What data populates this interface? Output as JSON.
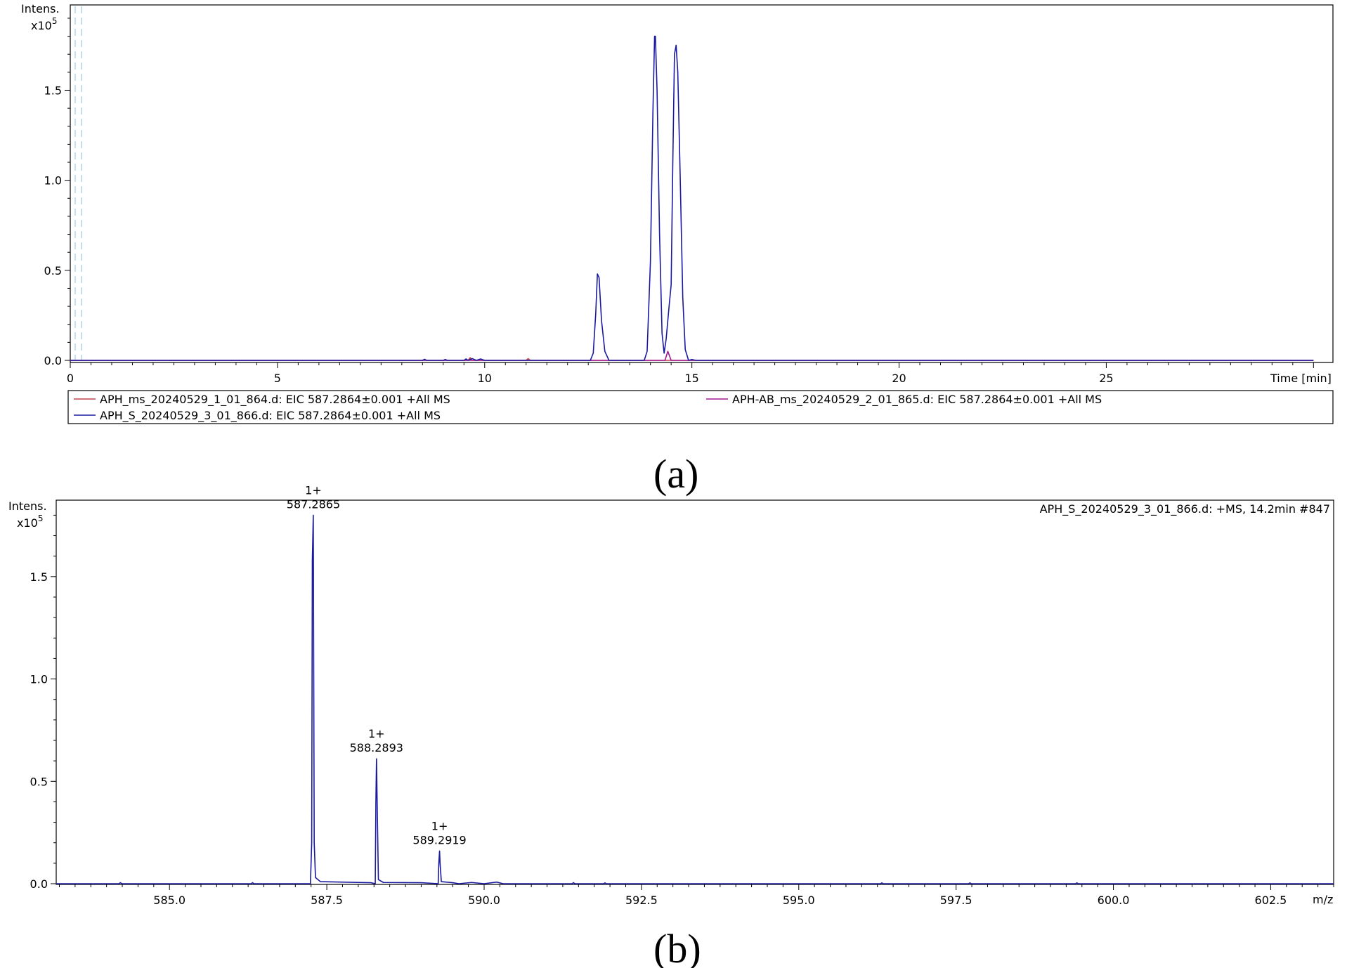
{
  "chart_data": [
    {
      "panel_label": "(a)",
      "type": "line",
      "ylabel": "Intens.",
      "yscale_label": "x10",
      "yscale_exp": "5",
      "xlabel": "Time [min]",
      "xlim": [
        0,
        30.3
      ],
      "ylim": [
        0,
        1.97
      ],
      "x_ticks": [
        0,
        5,
        10,
        15,
        20,
        25
      ],
      "x_tick_labels": [
        "0",
        "5",
        "10",
        "15",
        "20",
        "25"
      ],
      "y_ticks": [
        0.0,
        0.5,
        1.0,
        1.5
      ],
      "y_tick_labels": [
        "0.0",
        "0.5",
        "1.0",
        "1.5"
      ],
      "colors": {
        "series_1": "#c0404a",
        "series_2": "#a01890",
        "series_3": "#1a1aa0"
      },
      "legend": [
        "APH_ms_20240529_1_01_864.d: EIC 587.2864±0.001 +All MS",
        "APH-AB_ms_20240529_2_01_865.d: EIC 587.2864±0.001 +All MS",
        "APH_S_20240529_3_01_866.d: EIC 587.2864±0.001 +All MS"
      ],
      "series": [
        {
          "name": "APH_ms_20240529_1_01_864.d: EIC 587.2864±0.001 +All MS",
          "color": "#c0404a",
          "points": [
            [
              0,
              0
            ],
            [
              9.6,
              0
            ],
            [
              9.65,
              0.015
            ],
            [
              9.7,
              0
            ],
            [
              11.0,
              0
            ],
            [
              11.05,
              0.01
            ],
            [
              11.1,
              0
            ],
            [
              30,
              0
            ]
          ]
        },
        {
          "name": "APH-AB_ms_20240529_2_01_865.d: EIC 587.2864±0.001 +All MS",
          "color": "#a01890",
          "points": [
            [
              0,
              0
            ],
            [
              14.35,
              0
            ],
            [
              14.42,
              0.05
            ],
            [
              14.5,
              0
            ],
            [
              30,
              0
            ]
          ]
        },
        {
          "name": "APH_S_20240529_3_01_866.d: EIC 587.2864±0.001 +All MS",
          "color": "#1a1aa0",
          "points": [
            [
              0,
              0
            ],
            [
              8.5,
              0
            ],
            [
              8.55,
              0.006
            ],
            [
              8.6,
              0
            ],
            [
              9.0,
              0
            ],
            [
              9.05,
              0.005
            ],
            [
              9.1,
              0
            ],
            [
              9.5,
              0
            ],
            [
              9.55,
              0.008
            ],
            [
              9.6,
              0
            ],
            [
              9.7,
              0.01
            ],
            [
              9.8,
              0
            ],
            [
              9.9,
              0.008
            ],
            [
              10.0,
              0
            ],
            [
              12.55,
              0
            ],
            [
              12.62,
              0.04
            ],
            [
              12.68,
              0.26
            ],
            [
              12.72,
              0.48
            ],
            [
              12.76,
              0.46
            ],
            [
              12.82,
              0.22
            ],
            [
              12.9,
              0.05
            ],
            [
              13.0,
              0
            ],
            [
              13.4,
              0
            ],
            [
              13.85,
              0
            ],
            [
              13.92,
              0.05
            ],
            [
              14.0,
              0.55
            ],
            [
              14.06,
              1.38
            ],
            [
              14.1,
              1.8
            ],
            [
              14.12,
              1.8
            ],
            [
              14.16,
              1.5
            ],
            [
              14.22,
              0.7
            ],
            [
              14.28,
              0.15
            ],
            [
              14.33,
              0.04
            ],
            [
              14.38,
              0.12
            ],
            [
              14.45,
              0.3
            ],
            [
              14.5,
              0.42
            ],
            [
              14.54,
              1.1
            ],
            [
              14.58,
              1.7
            ],
            [
              14.62,
              1.75
            ],
            [
              14.66,
              1.6
            ],
            [
              14.72,
              1.0
            ],
            [
              14.78,
              0.35
            ],
            [
              14.84,
              0.06
            ],
            [
              14.92,
              0
            ],
            [
              15.0,
              0.005
            ],
            [
              15.1,
              0
            ],
            [
              30,
              0
            ]
          ]
        }
      ]
    },
    {
      "panel_label": "(b)",
      "type": "line",
      "ylabel": "Intens.",
      "yscale_label": "x10",
      "yscale_exp": "5",
      "xlabel": "m/z",
      "spectrum_info": "APH_S_20240529_3_01_866.d: +MS, 14.2min #847",
      "xlim": [
        583.2,
        603.5
      ],
      "ylim": [
        0,
        1.87
      ],
      "x_ticks": [
        585.0,
        587.5,
        590.0,
        592.5,
        595.0,
        597.5,
        600.0,
        602.5
      ],
      "x_tick_labels": [
        "585.0",
        "587.5",
        "590.0",
        "592.5",
        "595.0",
        "597.5",
        "600.0",
        "602.5"
      ],
      "y_ticks": [
        0.0,
        0.5,
        1.0,
        1.5
      ],
      "y_tick_labels": [
        "0.0",
        "0.5",
        "1.0",
        "1.5"
      ],
      "color": "#1a1aa0",
      "annotations": [
        {
          "charge": "1+",
          "mz": "587.2865",
          "x": 587.2865,
          "y": 1.8
        },
        {
          "charge": "1+",
          "mz": "588.2893",
          "x": 588.2893,
          "y": 0.61
        },
        {
          "charge": "1+",
          "mz": "589.2919",
          "x": 589.2919,
          "y": 0.16
        }
      ],
      "series": [
        {
          "color": "#1a1aa0",
          "points": [
            [
              583.2,
              0
            ],
            [
              584.2,
              0
            ],
            [
              584.22,
              0.005
            ],
            [
              584.24,
              0
            ],
            [
              586.3,
              0
            ],
            [
              586.32,
              0.005
            ],
            [
              586.34,
              0
            ],
            [
              587.24,
              0
            ],
            [
              587.26,
              0.2
            ],
            [
              587.27,
              1.58
            ],
            [
              587.285,
              1.8
            ],
            [
              587.3,
              0.2
            ],
            [
              587.32,
              0.03
            ],
            [
              587.4,
              0.01
            ],
            [
              588.2,
              0.005
            ],
            [
              588.27,
              0
            ],
            [
              588.28,
              0.4
            ],
            [
              588.29,
              0.61
            ],
            [
              588.3,
              0.4
            ],
            [
              588.32,
              0.02
            ],
            [
              588.4,
              0.006
            ],
            [
              589.0,
              0.005
            ],
            [
              589.27,
              0
            ],
            [
              589.28,
              0.1
            ],
            [
              589.292,
              0.16
            ],
            [
              589.3,
              0.1
            ],
            [
              589.32,
              0.01
            ],
            [
              589.5,
              0.005
            ],
            [
              589.6,
              0
            ],
            [
              589.8,
              0.006
            ],
            [
              590.0,
              0
            ],
            [
              590.2,
              0.008
            ],
            [
              590.3,
              0
            ],
            [
              591.4,
              0
            ],
            [
              591.42,
              0.005
            ],
            [
              591.44,
              0
            ],
            [
              591.9,
              0
            ],
            [
              591.92,
              0.004
            ],
            [
              591.94,
              0
            ],
            [
              596.3,
              0
            ],
            [
              596.32,
              0.004
            ],
            [
              596.34,
              0
            ],
            [
              597.7,
              0
            ],
            [
              597.72,
              0.004
            ],
            [
              597.74,
              0
            ],
            [
              599.4,
              0
            ],
            [
              599.42,
              0.004
            ],
            [
              599.44,
              0
            ],
            [
              603.5,
              0
            ]
          ]
        }
      ]
    }
  ]
}
